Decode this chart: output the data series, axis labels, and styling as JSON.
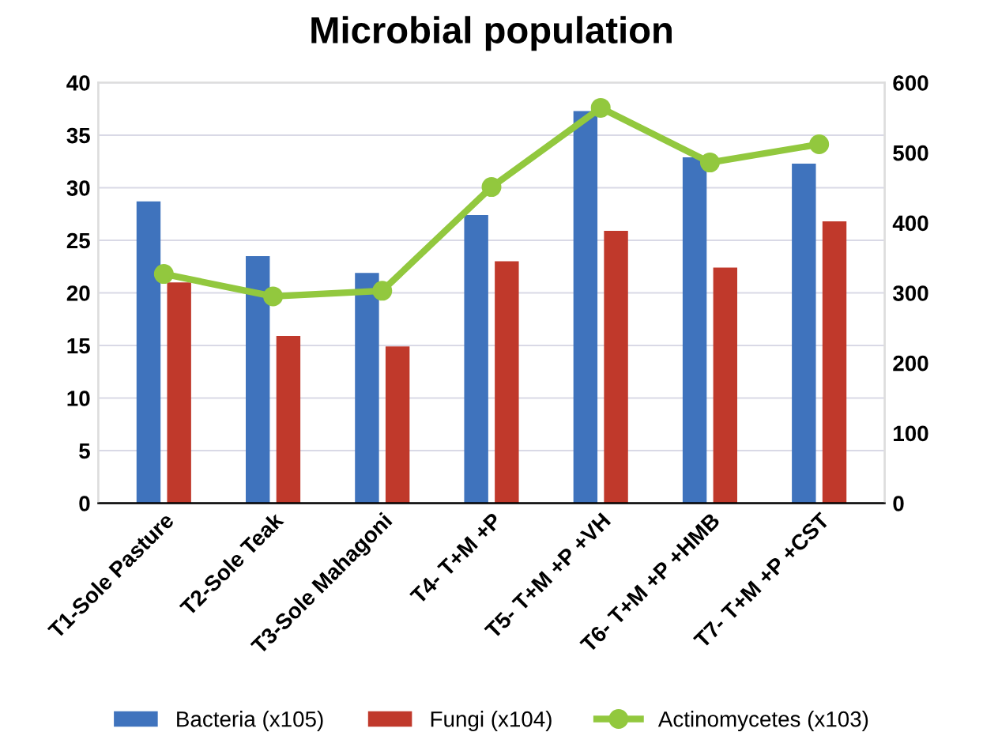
{
  "chart_data": {
    "type": "bar",
    "title": "Microbial population",
    "categories": [
      "T1-Sole Pasture",
      "T2-Sole Teak",
      "T3-Sole Mahagoni",
      "T4- T+M +P",
      "T5- T+M +P +VH",
      "T6- T+M +P +HMB",
      "T7- T+M +P +CST"
    ],
    "series": [
      {
        "name": "Bacteria (x105)",
        "color": "#3f73bd",
        "values": [
          28.7,
          23.5,
          21.9,
          27.4,
          37.3,
          32.9,
          32.3
        ]
      },
      {
        "name": "Fungi (x104)",
        "color": "#c0392b",
        "values": [
          21.0,
          15.9,
          14.9,
          23.0,
          25.9,
          22.4,
          26.8
        ]
      },
      {
        "name": "Actinomycetes (x103)",
        "type": "line",
        "axis": "y2",
        "color": "#92c83e",
        "marker": "circle",
        "values": [
          327,
          295,
          303,
          451,
          564,
          486,
          512
        ]
      }
    ],
    "ylim": [
      0,
      40
    ],
    "yticks": [
      0,
      5,
      10,
      15,
      20,
      25,
      30,
      35,
      40
    ],
    "y2lim": [
      0,
      600
    ],
    "y2ticks": [
      0,
      100,
      200,
      300,
      400,
      500,
      600
    ],
    "grid": "y",
    "legend": "bottom"
  }
}
